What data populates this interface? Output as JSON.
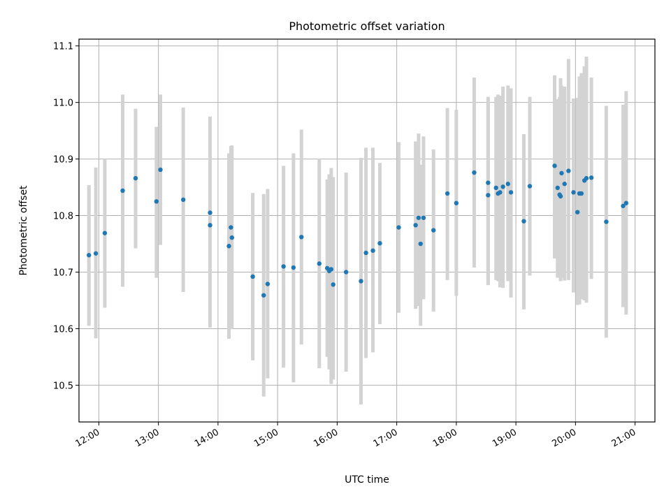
{
  "chart_data": {
    "type": "scatter",
    "title": "Photometric offset variation",
    "xlabel": "UTC time",
    "ylabel": "Photometric offset",
    "xlim": [
      "11:40",
      "21:20"
    ],
    "ylim": [
      10.435,
      11.112
    ],
    "grid": true,
    "colors": {
      "points": "#1f77b4",
      "error_bars": "#d3d3d3",
      "grid": "#b0b0b0"
    },
    "x_ticks": [
      "12:00",
      "13:00",
      "14:00",
      "15:00",
      "16:00",
      "17:00",
      "18:00",
      "19:00",
      "20:00",
      "21:00"
    ],
    "y_ticks": [
      "10.5",
      "10.6",
      "10.7",
      "10.8",
      "10.9",
      "11.0",
      "11.1"
    ],
    "series": [
      {
        "x": [
          "11:50",
          "11:57",
          "12:06",
          "12:24",
          "12:37",
          "12:58",
          "13:02",
          "13:25",
          "13:52",
          "13:52",
          "14:11",
          "14:13",
          "14:14",
          "14:35",
          "14:46",
          "14:50",
          "15:06",
          "15:16",
          "15:24",
          "15:42",
          "15:50",
          "15:52",
          "15:54",
          "15:56",
          "16:09",
          "16:24",
          "16:29",
          "16:36",
          "16:43",
          "17:02",
          "17:19",
          "17:22",
          "17:24",
          "17:27",
          "17:37",
          "17:51",
          "18:00",
          "18:18",
          "18:32",
          "18:32",
          "18:40",
          "18:42",
          "18:44",
          "18:47",
          "18:52",
          "18:55",
          "19:08",
          "19:14",
          "19:39",
          "19:42",
          "19:44",
          "19:45",
          "19:46",
          "19:49",
          "19:53",
          "19:58",
          "20:02",
          "20:04",
          "20:06",
          "20:09",
          "20:11",
          "20:16",
          "20:31",
          "20:48",
          "20:51"
        ],
        "y": [
          10.73,
          10.733,
          10.769,
          10.844,
          10.866,
          10.825,
          10.881,
          10.828,
          10.805,
          10.783,
          10.746,
          10.779,
          10.761,
          10.692,
          10.659,
          10.679,
          10.71,
          10.708,
          10.762,
          10.715,
          10.707,
          10.702,
          10.705,
          10.678,
          10.7,
          10.684,
          10.734,
          10.738,
          10.751,
          10.779,
          10.783,
          10.796,
          10.75,
          10.796,
          10.774,
          10.839,
          10.822,
          10.876,
          10.858,
          10.836,
          10.849,
          10.839,
          10.841,
          10.851,
          10.856,
          10.841,
          10.79,
          10.852,
          10.888,
          10.849,
          10.837,
          10.834,
          10.875,
          10.856,
          10.879,
          10.841,
          10.806,
          10.839,
          10.839,
          10.862,
          10.866,
          10.867,
          10.789,
          10.817,
          10.822
        ],
        "err_low": [
          10.605,
          10.583,
          10.637,
          10.674,
          10.742,
          10.69,
          10.748,
          10.665,
          10.602,
          10.607,
          10.582,
          10.599,
          10.6,
          10.544,
          10.48,
          10.512,
          10.531,
          10.505,
          10.572,
          10.53,
          10.55,
          10.528,
          10.502,
          10.51,
          10.524,
          10.466,
          10.548,
          10.558,
          10.608,
          10.628,
          10.635,
          10.64,
          10.605,
          10.652,
          10.63,
          10.686,
          10.658,
          10.708,
          10.678,
          10.677,
          10.686,
          10.684,
          10.673,
          10.672,
          10.684,
          10.655,
          10.634,
          10.694,
          10.724,
          10.69,
          10.708,
          10.684,
          10.69,
          10.685,
          10.686,
          10.664,
          10.642,
          10.643,
          10.652,
          10.65,
          10.646,
          10.688,
          10.584,
          10.638,
          10.625
        ],
        "err_high": [
          10.854,
          10.885,
          10.9,
          11.014,
          10.989,
          10.957,
          11.014,
          10.991,
          10.975,
          10.962,
          10.91,
          10.923,
          10.924,
          10.84,
          10.838,
          10.847,
          10.888,
          10.91,
          10.952,
          10.901,
          10.864,
          10.873,
          10.884,
          10.868,
          10.876,
          10.902,
          10.92,
          10.92,
          10.893,
          10.93,
          10.931,
          10.945,
          10.89,
          10.94,
          10.917,
          10.99,
          10.987,
          11.044,
          11.01,
          11.001,
          11.01,
          11.014,
          11.012,
          11.028,
          11.03,
          11.025,
          10.944,
          11.01,
          11.048,
          11.006,
          11.01,
          11.043,
          11.03,
          11.028,
          11.077,
          11.007,
          11.008,
          11.046,
          11.052,
          11.064,
          11.081,
          11.044,
          10.994,
          10.996,
          11.02
        ]
      }
    ]
  }
}
